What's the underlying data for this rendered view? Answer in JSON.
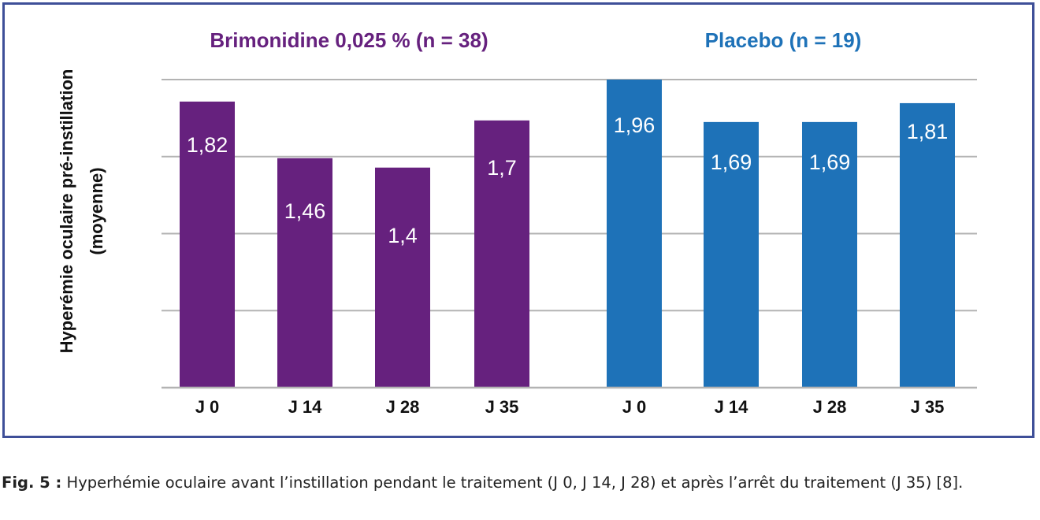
{
  "chart_data": {
    "type": "bar",
    "ylabel": [
      "Hyperémie oculaire pré-instillation",
      "(moyenne)"
    ],
    "ylim": [
      0,
      1.96
    ],
    "gridlines": 4,
    "colors": {
      "brimonidine": "#66217e",
      "placebo": "#1e72b8",
      "grid": "#b3b3b3",
      "frame": "#3e4f98"
    },
    "groups": [
      {
        "name": "Brimonidine 0,025 % (n = 38)",
        "color": "#66217e",
        "categories": [
          "J 0",
          "J 14",
          "J 28",
          "J 35"
        ],
        "values": [
          1.82,
          1.46,
          1.4,
          1.7
        ],
        "labels": [
          "1,82",
          "1,46",
          "1,4",
          "1,7"
        ]
      },
      {
        "name": "Placebo (n = 19)",
        "color": "#1e72b8",
        "categories": [
          "J 0",
          "J 14",
          "J 28",
          "J 35"
        ],
        "values": [
          1.96,
          1.69,
          1.69,
          1.81
        ],
        "labels": [
          "1,96",
          "1,69",
          "1,69",
          "1,81"
        ]
      }
    ]
  },
  "caption": {
    "label": "Fig. 5 :",
    "text": " Hyperhémie oculaire avant l’instillation pendant le traitement (J 0, J 14, J 28) et après l’arrêt du traitement (J 35) [8]."
  }
}
